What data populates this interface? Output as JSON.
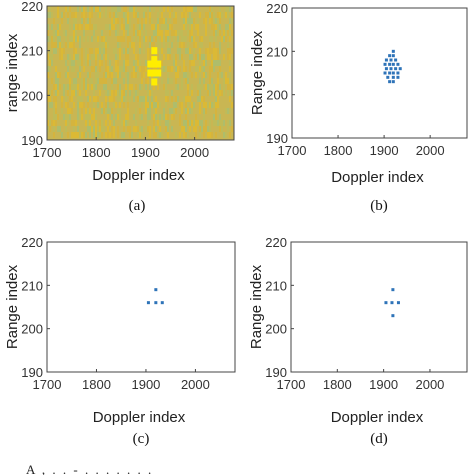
{
  "bottom_text": "A           ,  .   .          -    .  .         .   .     .  .   .",
  "chart_data": [
    {
      "type": "heatmap",
      "caption": "(a)",
      "xlabel": "Doppler index",
      "ylabel": "range index",
      "xlim": [
        1700,
        2080
      ],
      "ylim": [
        190,
        220
      ],
      "xticks": [
        1700,
        1800,
        1900,
        2000
      ],
      "yticks": [
        190,
        200,
        210,
        220
      ],
      "background_color": "#c9b653",
      "noise_colors": [
        "#d8b43a",
        "#a8bf72",
        "#bdbd5a",
        "#e0ba2e"
      ],
      "highlight_color": "#ffee00",
      "points": [
        {
          "x": 1918,
          "y": 210
        },
        {
          "x": 1918,
          "y": 208
        },
        {
          "x": 1910,
          "y": 207
        },
        {
          "x": 1918,
          "y": 207
        },
        {
          "x": 1926,
          "y": 207
        },
        {
          "x": 1910,
          "y": 205
        },
        {
          "x": 1918,
          "y": 205
        },
        {
          "x": 1926,
          "y": 205
        },
        {
          "x": 1918,
          "y": 203
        }
      ]
    },
    {
      "type": "scatter",
      "caption": "(b)",
      "xlabel": "Doppler index",
      "ylabel": "Range index",
      "xlim": [
        1700,
        2080
      ],
      "ylim": [
        190,
        220
      ],
      "xticks": [
        1700,
        1800,
        1900,
        2000
      ],
      "yticks": [
        190,
        200,
        210,
        220
      ],
      "marker_color": "#2e73b8",
      "points": [
        {
          "x": 1920,
          "y": 210
        },
        {
          "x": 1912,
          "y": 209
        },
        {
          "x": 1920,
          "y": 209
        },
        {
          "x": 1905,
          "y": 208
        },
        {
          "x": 1915,
          "y": 208
        },
        {
          "x": 1925,
          "y": 208
        },
        {
          "x": 1902,
          "y": 207
        },
        {
          "x": 1912,
          "y": 207
        },
        {
          "x": 1920,
          "y": 207
        },
        {
          "x": 1930,
          "y": 207
        },
        {
          "x": 1905,
          "y": 206
        },
        {
          "x": 1915,
          "y": 206
        },
        {
          "x": 1925,
          "y": 206
        },
        {
          "x": 1935,
          "y": 206
        },
        {
          "x": 1902,
          "y": 205
        },
        {
          "x": 1912,
          "y": 205
        },
        {
          "x": 1920,
          "y": 205
        },
        {
          "x": 1930,
          "y": 205
        },
        {
          "x": 1908,
          "y": 204
        },
        {
          "x": 1920,
          "y": 204
        },
        {
          "x": 1930,
          "y": 204
        },
        {
          "x": 1912,
          "y": 203
        },
        {
          "x": 1920,
          "y": 203
        }
      ]
    },
    {
      "type": "scatter",
      "caption": "(c)",
      "xlabel": "Doppler index",
      "ylabel": "Range index",
      "xlim": [
        1700,
        2080
      ],
      "ylim": [
        190,
        220
      ],
      "xticks": [
        1700,
        1800,
        1900,
        2000
      ],
      "yticks": [
        190,
        200,
        210,
        220
      ],
      "marker_color": "#2e73b8",
      "points": [
        {
          "x": 1920,
          "y": 209
        },
        {
          "x": 1905,
          "y": 206
        },
        {
          "x": 1920,
          "y": 206
        },
        {
          "x": 1933,
          "y": 206
        }
      ]
    },
    {
      "type": "scatter",
      "caption": "(d)",
      "xlabel": "Doppler index",
      "ylabel": "Range index",
      "xlim": [
        1700,
        2080
      ],
      "ylim": [
        190,
        220
      ],
      "xticks": [
        1700,
        1800,
        1900,
        2000
      ],
      "yticks": [
        190,
        200,
        210,
        220
      ],
      "marker_color": "#2e73b8",
      "points": [
        {
          "x": 1920,
          "y": 209
        },
        {
          "x": 1905,
          "y": 206
        },
        {
          "x": 1918,
          "y": 206
        },
        {
          "x": 1932,
          "y": 206
        },
        {
          "x": 1920,
          "y": 203
        }
      ]
    }
  ]
}
